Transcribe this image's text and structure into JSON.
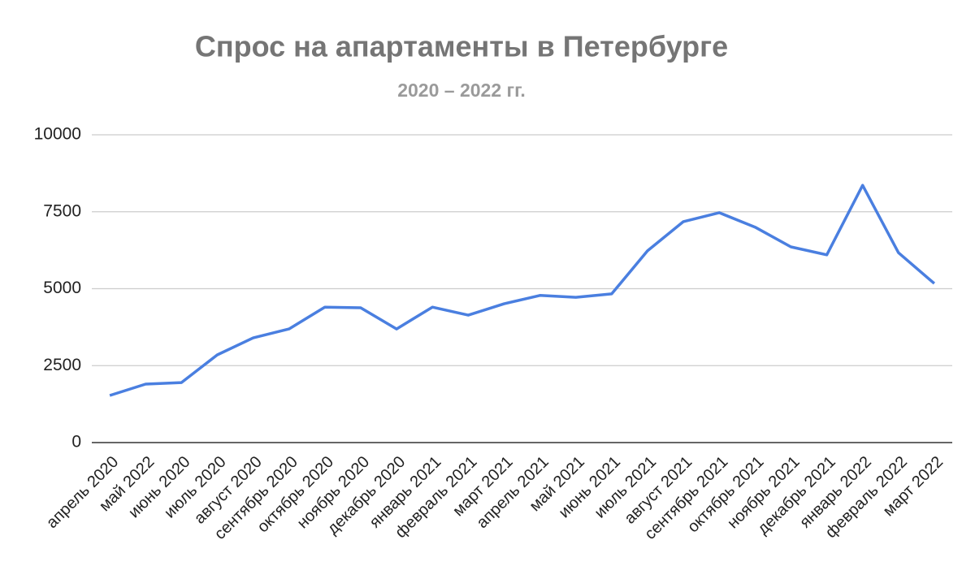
{
  "chart_data": {
    "type": "line",
    "title": "Спрос на апартаменты в Петербурге",
    "subtitle": "2020 – 2022 гг.",
    "categories": [
      "апрель 2020",
      "май 2022",
      "июнь 2020",
      "июль 2020",
      "август 2020",
      "сентябрь 2020",
      "октябрь 2020",
      "ноябрь 2020",
      "декабрь 2020",
      "январь 2021",
      "февраль 2021",
      "март 2021",
      "апрель 2021",
      "май 2021",
      "июнь 2021",
      "июль 2021",
      "август 2021",
      "сентябрь 2021",
      "октябрь 2021",
      "ноябрь 2021",
      "декабрь 2021",
      "январь 2022",
      "февраль 2022",
      "март 2022"
    ],
    "values": [
      1530,
      1900,
      1950,
      2850,
      3400,
      3690,
      4400,
      4380,
      3690,
      4400,
      4140,
      4510,
      4780,
      4720,
      4830,
      6230,
      7180,
      7470,
      7000,
      6360,
      6100,
      8360,
      6170,
      5170
    ],
    "color": "#4a7fe0",
    "ylim": [
      0,
      10000
    ],
    "yticks": [
      0,
      2500,
      5000,
      7500,
      10000
    ],
    "grid": true
  }
}
